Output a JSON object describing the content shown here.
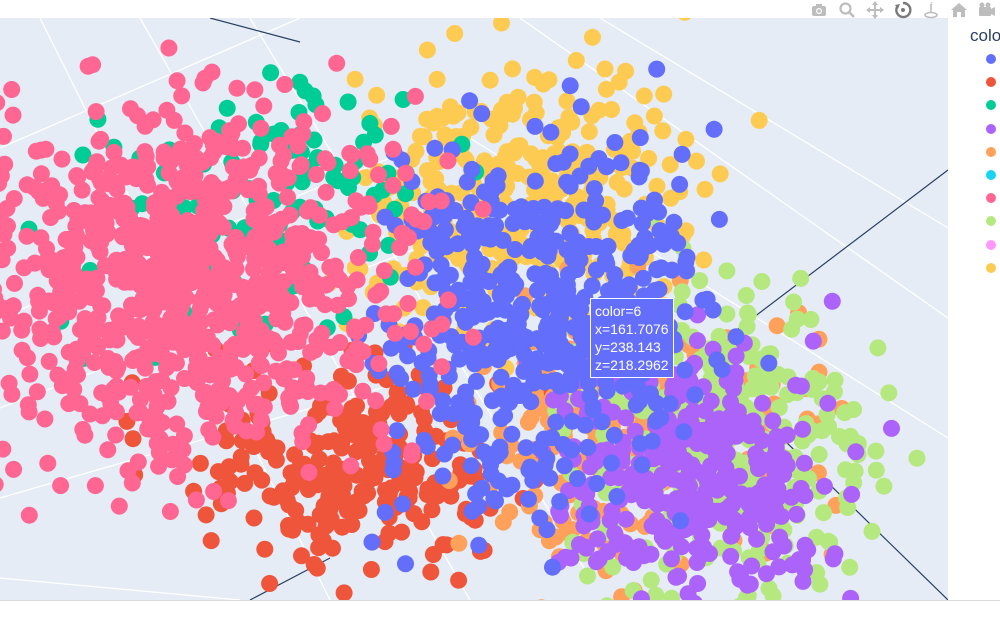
{
  "chart_data": {
    "type": "scatter",
    "subtype": "3d-scatter",
    "legend": {
      "title": "colo",
      "placement": "top-right",
      "items": [
        {
          "name": "",
          "color": "#636efa"
        },
        {
          "name": "",
          "color": "#ef553b"
        },
        {
          "name": "",
          "color": "#00cc96"
        },
        {
          "name": "",
          "color": "#ab63fa"
        },
        {
          "name": "",
          "color": "#ffa15a"
        },
        {
          "name": "",
          "color": "#19d3f3"
        },
        {
          "name": "",
          "color": "#ff6692"
        },
        {
          "name": "",
          "color": "#b6e880"
        },
        {
          "name": "",
          "color": "#ff97ff"
        },
        {
          "name": "",
          "color": "#fecb52"
        }
      ]
    },
    "hover": {
      "color_line": "color=6",
      "x_line": "x=161.7076",
      "y_line": "y=238.143",
      "z_line": "z=218.2962",
      "point": {
        "color": 6,
        "x": 161.7076,
        "y": 238.143,
        "z": 218.2962
      }
    },
    "grid": true,
    "background_color": "#e5ecf6"
  },
  "modebar": {
    "buttons": [
      {
        "name": "camera-icon"
      },
      {
        "name": "zoom-icon"
      },
      {
        "name": "pan-icon"
      },
      {
        "name": "orbit-rotation-icon"
      },
      {
        "name": "turntable-rotation-icon"
      },
      {
        "name": "reset-camera-icon"
      },
      {
        "name": "last-save-camera-icon"
      }
    ]
  }
}
